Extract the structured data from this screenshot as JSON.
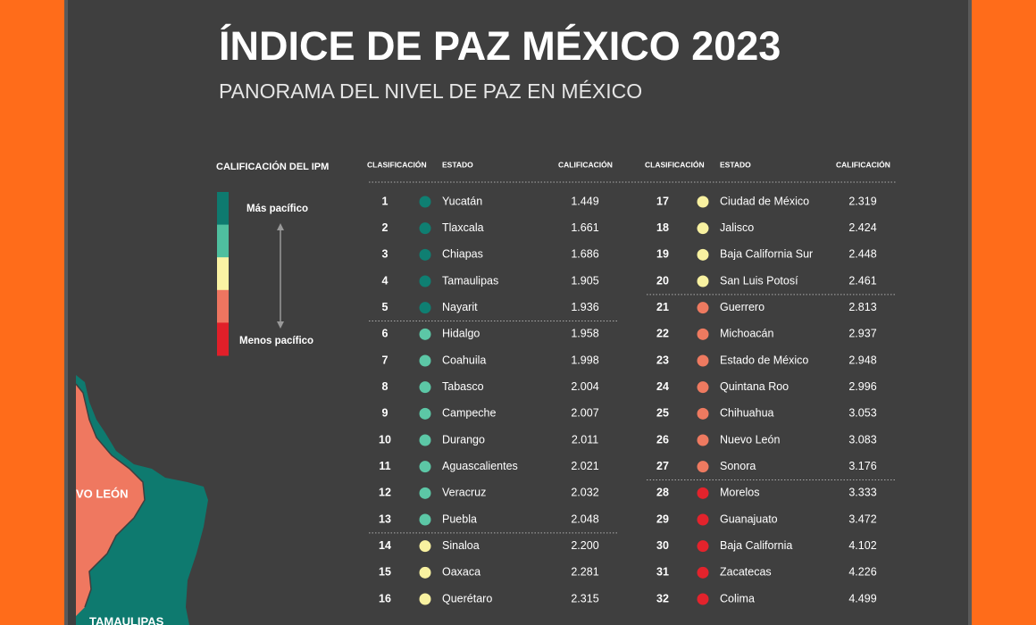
{
  "header": {
    "title": "ÍNDICE DE PAZ MÉXICO 2023",
    "subtitle": "PANORAMA DEL NIVEL DE PAZ EN MÉXICO"
  },
  "legend": {
    "title": "CALIFICACIÓN DEL IPM",
    "top_label": "Más pacífico",
    "bottom_label": "Menos pacífico",
    "colors": [
      "#0e7a6f",
      "#4fbf9f",
      "#fbf3a4",
      "#ee7560",
      "#e11f29"
    ]
  },
  "table": {
    "headers": [
      "CLASIFICACIÓN",
      "ESTADO",
      "CALIFICACIÓN"
    ],
    "rows": [
      {
        "rank": 1,
        "state": "Yucatán",
        "score": "1.449",
        "color": "#0f7f72"
      },
      {
        "rank": 2,
        "state": "Tlaxcala",
        "score": "1.661",
        "color": "#0f7f72"
      },
      {
        "rank": 3,
        "state": "Chiapas",
        "score": "1.686",
        "color": "#0f7f72"
      },
      {
        "rank": 4,
        "state": "Tamaulipas",
        "score": "1.905",
        "color": "#0f7f72"
      },
      {
        "rank": 5,
        "state": "Nayarit",
        "score": "1.936",
        "color": "#0f7f72"
      },
      {
        "rank": 6,
        "state": "Hidalgo",
        "score": "1.958",
        "color": "#5cc7a6"
      },
      {
        "rank": 7,
        "state": "Coahuila",
        "score": "1.998",
        "color": "#5cc7a6"
      },
      {
        "rank": 8,
        "state": "Tabasco",
        "score": "2.004",
        "color": "#5cc7a6"
      },
      {
        "rank": 9,
        "state": "Campeche",
        "score": "2.007",
        "color": "#5cc7a6"
      },
      {
        "rank": 10,
        "state": "Durango",
        "score": "2.011",
        "color": "#5cc7a6"
      },
      {
        "rank": 11,
        "state": "Aguascalientes",
        "score": "2.021",
        "color": "#5cc7a6"
      },
      {
        "rank": 12,
        "state": "Veracruz",
        "score": "2.032",
        "color": "#5cc7a6"
      },
      {
        "rank": 13,
        "state": "Puebla",
        "score": "2.048",
        "color": "#5cc7a6"
      },
      {
        "rank": 14,
        "state": "Sinaloa",
        "score": "2.200",
        "color": "#f8f1a0"
      },
      {
        "rank": 15,
        "state": "Oaxaca",
        "score": "2.281",
        "color": "#f8f1a0"
      },
      {
        "rank": 16,
        "state": "Querétaro",
        "score": "2.315",
        "color": "#f8f1a0"
      },
      {
        "rank": 17,
        "state": "Ciudad de México",
        "score": "2.319",
        "color": "#f8f1a0"
      },
      {
        "rank": 18,
        "state": "Jalisco",
        "score": "2.424",
        "color": "#f8f1a0"
      },
      {
        "rank": 19,
        "state": "Baja California Sur",
        "score": "2.448",
        "color": "#f8f1a0"
      },
      {
        "rank": 20,
        "state": "San Luis Potosí",
        "score": "2.461",
        "color": "#f8f1a0"
      },
      {
        "rank": 21,
        "state": "Guerrero",
        "score": "2.813",
        "color": "#ee7a60"
      },
      {
        "rank": 22,
        "state": "Michoacán",
        "score": "2.937",
        "color": "#ee7a60"
      },
      {
        "rank": 23,
        "state": "Estado de México",
        "score": "2.948",
        "color": "#ee7a60"
      },
      {
        "rank": 24,
        "state": "Quintana Roo",
        "score": "2.996",
        "color": "#ee7a60"
      },
      {
        "rank": 25,
        "state": "Chihuahua",
        "score": "3.053",
        "color": "#ee7a60"
      },
      {
        "rank": 26,
        "state": "Nuevo León",
        "score": "3.083",
        "color": "#ee7a60"
      },
      {
        "rank": 27,
        "state": "Sonora",
        "score": "3.176",
        "color": "#ee7a60"
      },
      {
        "rank": 28,
        "state": "Morelos",
        "score": "3.333",
        "color": "#e3232c"
      },
      {
        "rank": 29,
        "state": "Guanajuato",
        "score": "3.472",
        "color": "#e3232c"
      },
      {
        "rank": 30,
        "state": "Baja California",
        "score": "4.102",
        "color": "#e3232c"
      },
      {
        "rank": 31,
        "state": "Zacatecas",
        "score": "4.226",
        "color": "#e3232c"
      },
      {
        "rank": 32,
        "state": "Colima",
        "score": "4.499",
        "color": "#e3232c"
      }
    ]
  },
  "map": {
    "labels": [
      "VO LEÓN",
      "TAMAULIPAS"
    ]
  }
}
